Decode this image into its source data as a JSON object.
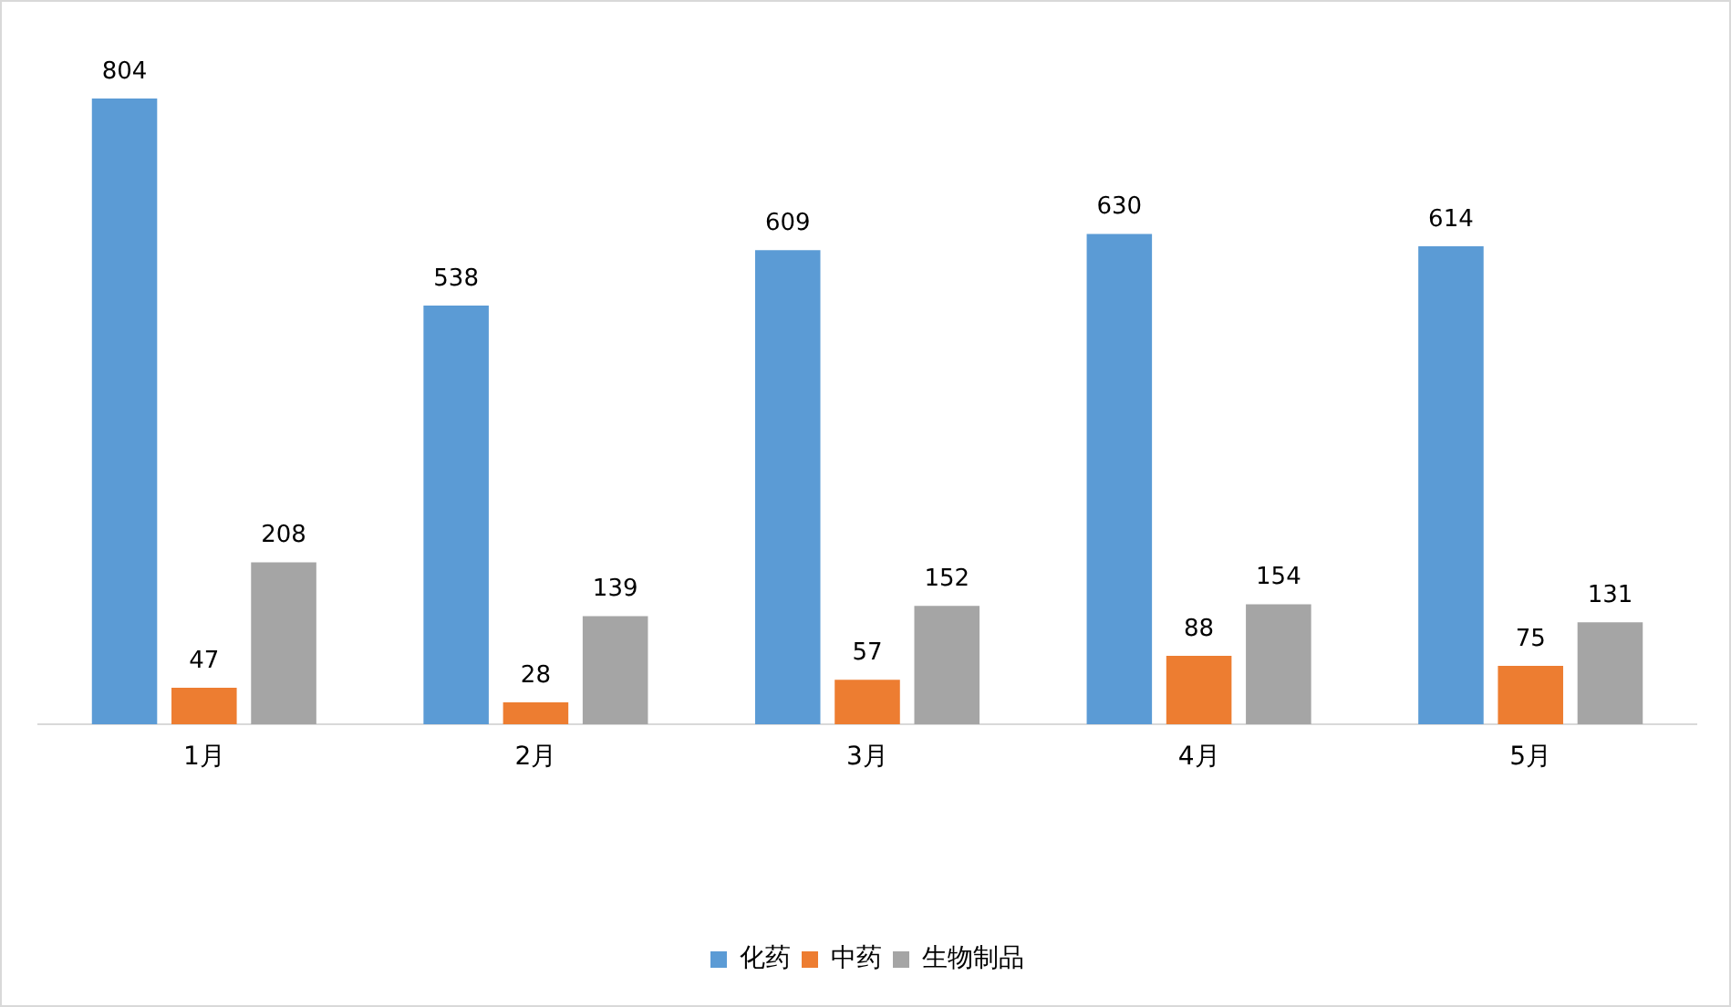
{
  "chart_data": {
    "type": "bar",
    "categories": [
      "1月",
      "2月",
      "3月",
      "4月",
      "5月"
    ],
    "series": [
      {
        "name": "化药",
        "color": "#5b9bd5",
        "values": [
          804,
          538,
          609,
          630,
          614
        ]
      },
      {
        "name": "中药",
        "color": "#ed7d31",
        "values": [
          47,
          28,
          57,
          88,
          75
        ]
      },
      {
        "name": "生物制品",
        "color": "#a5a5a5",
        "values": [
          208,
          139,
          152,
          154,
          131
        ]
      }
    ],
    "tick_labels": "x",
    "data_labels": true,
    "legend": "bottom",
    "grid": false
  }
}
